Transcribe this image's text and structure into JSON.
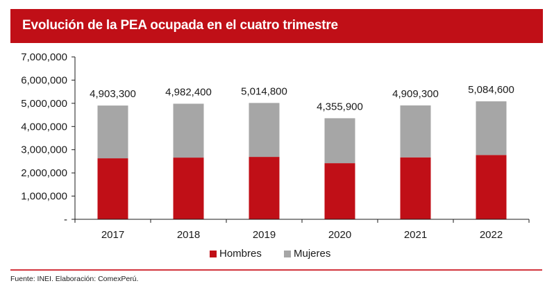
{
  "header": {
    "title": "Evolución de la PEA ocupada en el cuatro trimestre"
  },
  "footer": {
    "source": "Fuente: INEI. Elaboración: ComexPerú."
  },
  "colors": {
    "brand_red": "#c00f17",
    "hombres": "#c00f17",
    "mujeres": "#a6a6a6",
    "footer_line": "#d2353d"
  },
  "chart_data": {
    "type": "bar",
    "stacked": true,
    "title": "Evolución de la PEA ocupada en el cuatro trimestre",
    "xlabel": "",
    "ylabel": "",
    "categories": [
      "2017",
      "2018",
      "2019",
      "2020",
      "2021",
      "2022"
    ],
    "series": [
      {
        "name": "Hombres",
        "color": "#c00f17",
        "values": [
          2630000,
          2660000,
          2690000,
          2420000,
          2670000,
          2770000
        ]
      },
      {
        "name": "Mujeres",
        "color": "#a6a6a6",
        "values": [
          2273300,
          2322400,
          2324800,
          1935900,
          2239300,
          2314600
        ]
      }
    ],
    "totals": [
      4903300,
      4982400,
      5014800,
      4355900,
      4909300,
      5084600
    ],
    "total_labels": [
      "4,903,300",
      "4,982,400",
      "5,014,800",
      "4,355,900",
      "4,909,300",
      "5,084,600"
    ],
    "ylim": [
      0,
      7000000
    ],
    "yticks": [
      0,
      1000000,
      2000000,
      3000000,
      4000000,
      5000000,
      6000000,
      7000000
    ],
    "ytick_labels": [
      "-",
      "1,000,000",
      "2,000,000",
      "3,000,000",
      "4,000,000",
      "5,000,000",
      "6,000,000",
      "7,000,000"
    ],
    "grid": false,
    "legend": {
      "position": "bottom-center",
      "entries": [
        "Hombres",
        "Mujeres"
      ]
    }
  }
}
